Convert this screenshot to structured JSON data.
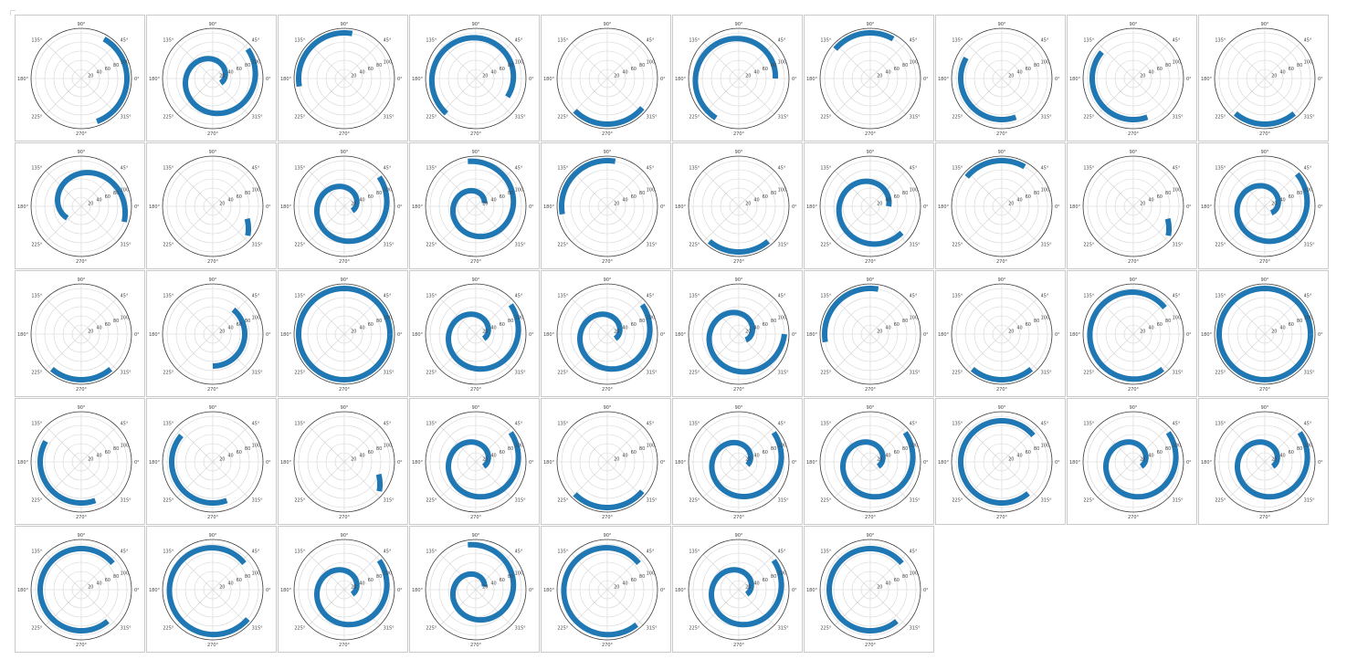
{
  "axis_labels": {
    "angles": [
      "0°",
      "45°",
      "90°",
      "135°",
      "180°",
      "225°",
      "270°",
      "315°"
    ],
    "radial": [
      "20",
      "40",
      "60",
      "80",
      "100"
    ]
  },
  "colors": {
    "spiral": "#1f77b4",
    "grid": "#d4d4d4",
    "frame": "#3a3a3a"
  },
  "chart_data": {
    "type": "spiral-polar-grid",
    "rmax": 110,
    "rticks": [
      20,
      40,
      60,
      80,
      100
    ],
    "theta_ticks_deg": [
      0,
      45,
      90,
      135,
      180,
      225,
      270,
      315
    ],
    "grid": true,
    "note_units": "each panel: spiral arc with radius r (data units) and angle theta (degrees)",
    "panels": [
      {
        "r0": 100,
        "r1": 100,
        "t0": 60,
        "t1": -70
      },
      {
        "r0": 20,
        "r1": 100,
        "t0": -30,
        "t1": 400
      },
      {
        "r0": 100,
        "r1": 100,
        "t0": 80,
        "t1": 190
      },
      {
        "r0": 80,
        "r1": 100,
        "t0": -30,
        "t1": 230
      },
      {
        "r0": 100,
        "r1": 100,
        "t0": 225,
        "t1": 320
      },
      {
        "r0": 80,
        "r1": 100,
        "t0": 0,
        "t1": 240
      },
      {
        "r0": 100,
        "r1": 100,
        "t0": 60,
        "t1": 140
      },
      {
        "r0": 90,
        "r1": 90,
        "t0": 150,
        "t1": 290
      },
      {
        "r0": 90,
        "r1": 90,
        "t0": 140,
        "t1": 290
      },
      {
        "r0": 100,
        "r1": 100,
        "t0": 230,
        "t1": 310
      },
      {
        "r0": 40,
        "r1": 100,
        "t0": 220,
        "t1": -20
      },
      {
        "r0": 80,
        "r1": 100,
        "t0": -20,
        "t1": -40
      },
      {
        "r0": 20,
        "r1": 100,
        "t0": -30,
        "t1": 400
      },
      {
        "r0": 20,
        "r1": 100,
        "t0": 20,
        "t1": 460
      },
      {
        "r0": 100,
        "r1": 100,
        "t0": 80,
        "t1": 190
      },
      {
        "r0": 100,
        "r1": 100,
        "t0": 230,
        "t1": 310
      },
      {
        "r0": 40,
        "r1": 90,
        "t0": 0,
        "t1": 320
      },
      {
        "r0": 100,
        "r1": 100,
        "t0": 60,
        "t1": 140
      },
      {
        "r0": 80,
        "r1": 100,
        "t0": -20,
        "t1": -40
      },
      {
        "r0": 20,
        "r1": 100,
        "t0": -45,
        "t1": 405
      },
      {
        "r0": 100,
        "r1": 100,
        "t0": 230,
        "t1": 310
      },
      {
        "r0": 70,
        "r1": 70,
        "t0": 50,
        "t1": -90
      },
      {
        "r0": 100,
        "r1": 100,
        "t0": 0,
        "t1": 360
      },
      {
        "r0": 20,
        "r1": 100,
        "t0": -30,
        "t1": 400
      },
      {
        "r0": 20,
        "r1": 100,
        "t0": -30,
        "t1": 400
      },
      {
        "r0": 20,
        "r1": 100,
        "t0": -40,
        "t1": 360
      },
      {
        "r0": 100,
        "r1": 100,
        "t0": 80,
        "t1": 190
      },
      {
        "r0": 100,
        "r1": 100,
        "t0": 230,
        "t1": 310
      },
      {
        "r0": 90,
        "r1": 100,
        "t0": 40,
        "t1": 310
      },
      {
        "r0": 100,
        "r1": 100,
        "t0": 0,
        "t1": 360
      },
      {
        "r0": 90,
        "r1": 90,
        "t0": 150,
        "t1": 290
      },
      {
        "r0": 90,
        "r1": 90,
        "t0": 140,
        "t1": 290
      },
      {
        "r0": 80,
        "r1": 100,
        "t0": -20,
        "t1": -40
      },
      {
        "r0": 20,
        "r1": 100,
        "t0": -30,
        "t1": 400
      },
      {
        "r0": 100,
        "r1": 100,
        "t0": 225,
        "t1": 320
      },
      {
        "r0": 20,
        "r1": 100,
        "t0": -20,
        "t1": 400
      },
      {
        "r0": 20,
        "r1": 100,
        "t0": -30,
        "t1": 400
      },
      {
        "r0": 90,
        "r1": 90,
        "t0": 40,
        "t1": 310
      },
      {
        "r0": 20,
        "r1": 100,
        "t0": -30,
        "t1": 400
      },
      {
        "r0": 20,
        "r1": 100,
        "t0": -30,
        "t1": 400
      },
      {
        "r0": 90,
        "r1": 90,
        "t0": 40,
        "t1": 310
      },
      {
        "r0": 90,
        "r1": 100,
        "t0": 40,
        "t1": 320
      },
      {
        "r0": 20,
        "r1": 100,
        "t0": -30,
        "t1": 400
      },
      {
        "r0": 20,
        "r1": 100,
        "t0": 20,
        "t1": 460
      },
      {
        "r0": 90,
        "r1": 100,
        "t0": 40,
        "t1": 310
      },
      {
        "r0": 20,
        "r1": 100,
        "t0": -30,
        "t1": 400
      },
      {
        "r0": 90,
        "r1": 90,
        "t0": 40,
        "t1": 310
      }
    ]
  }
}
